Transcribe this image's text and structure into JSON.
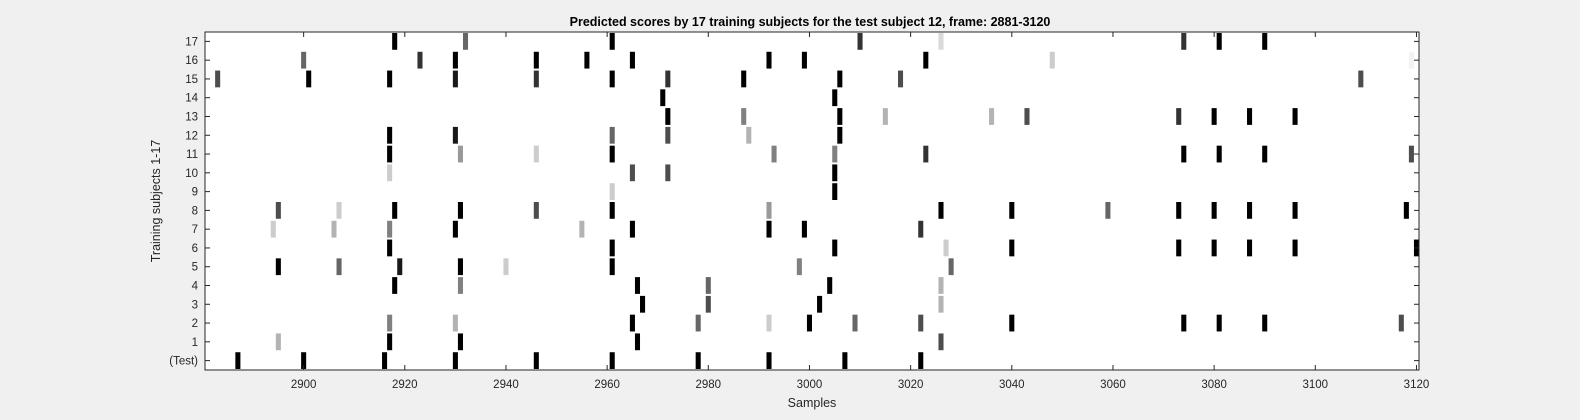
{
  "chart_data": {
    "type": "heatmap",
    "title": "Predicted scores by 17 training subjects for the test subject 12, frame: 2881-3120",
    "xlabel": "Samples",
    "ylabel": "Training subjects 1-17",
    "xlim": [
      2881,
      3120
    ],
    "x_ticks": [
      2900,
      2920,
      2940,
      2960,
      2980,
      3000,
      3020,
      3040,
      3060,
      3080,
      3100,
      3120
    ],
    "row_labels": [
      "(Test)",
      "1",
      "2",
      "3",
      "4",
      "5",
      "6",
      "7",
      "8",
      "9",
      "10",
      "11",
      "12",
      "13",
      "14",
      "15",
      "16",
      "17"
    ],
    "value_scale": "1 = black, 0 = white",
    "rows": [
      {
        "label": "(Test)",
        "cells": [
          [
            2887,
            1
          ],
          [
            2900,
            1
          ],
          [
            2916,
            1
          ],
          [
            2930,
            1
          ],
          [
            2946,
            1
          ],
          [
            2961,
            1
          ],
          [
            2978,
            1
          ],
          [
            2992,
            1
          ],
          [
            3007,
            1
          ],
          [
            3022,
            1
          ]
        ]
      },
      {
        "label": "1",
        "cells": [
          [
            2895,
            0.3
          ],
          [
            2917,
            1
          ],
          [
            2931,
            1
          ],
          [
            2966,
            1
          ],
          [
            3026,
            0.7
          ]
        ]
      },
      {
        "label": "2",
        "cells": [
          [
            2917,
            0.5
          ],
          [
            2930,
            0.3
          ],
          [
            2965,
            1
          ],
          [
            2978,
            0.6
          ],
          [
            2992,
            0.2
          ],
          [
            3000,
            1
          ],
          [
            3009,
            0.6
          ],
          [
            3022,
            0.7
          ],
          [
            3040,
            1
          ],
          [
            3074,
            1
          ],
          [
            3081,
            1
          ],
          [
            3090,
            1
          ],
          [
            3117,
            0.7
          ]
        ]
      },
      {
        "label": "3",
        "cells": [
          [
            2967,
            1
          ],
          [
            2980,
            0.7
          ],
          [
            3002,
            1
          ],
          [
            3026,
            0.3
          ]
        ]
      },
      {
        "label": "4",
        "cells": [
          [
            2918,
            1
          ],
          [
            2931,
            0.5
          ],
          [
            2966,
            1
          ],
          [
            2980,
            0.6
          ],
          [
            3004,
            1
          ],
          [
            3026,
            0.3
          ]
        ]
      },
      {
        "label": "5",
        "cells": [
          [
            2895,
            1
          ],
          [
            2907,
            0.6
          ],
          [
            2919,
            0.9
          ],
          [
            2931,
            1
          ],
          [
            2940,
            0.2
          ],
          [
            2961,
            1
          ],
          [
            2998,
            0.5
          ],
          [
            3028,
            0.6
          ]
        ]
      },
      {
        "label": "6",
        "cells": [
          [
            2917,
            1
          ],
          [
            2961,
            1
          ],
          [
            3005,
            1
          ],
          [
            3027,
            0.2
          ],
          [
            3040,
            1
          ],
          [
            3073,
            1
          ],
          [
            3080,
            1
          ],
          [
            3087,
            1
          ],
          [
            3096,
            1
          ],
          [
            3120,
            1
          ]
        ]
      },
      {
        "label": "7",
        "cells": [
          [
            2894,
            0.2
          ],
          [
            2906,
            0.3
          ],
          [
            2917,
            0.5
          ],
          [
            2930,
            1
          ],
          [
            2955,
            0.3
          ],
          [
            2965,
            1
          ],
          [
            2992,
            1
          ],
          [
            2999,
            1
          ],
          [
            3022,
            0.8
          ]
        ]
      },
      {
        "label": "8",
        "cells": [
          [
            2895,
            0.7
          ],
          [
            2907,
            0.2
          ],
          [
            2918,
            1
          ],
          [
            2931,
            1
          ],
          [
            2946,
            0.7
          ],
          [
            2961,
            1
          ],
          [
            2992,
            0.4
          ],
          [
            3026,
            1
          ],
          [
            3040,
            1
          ],
          [
            3059,
            0.6
          ],
          [
            3073,
            1
          ],
          [
            3080,
            1
          ],
          [
            3087,
            1
          ],
          [
            3096,
            1
          ],
          [
            3118,
            1
          ]
        ]
      },
      {
        "label": "9",
        "cells": [
          [
            2961,
            0.2
          ],
          [
            3005,
            1
          ]
        ]
      },
      {
        "label": "10",
        "cells": [
          [
            2917,
            0.2
          ],
          [
            2965,
            0.7
          ],
          [
            2972,
            0.7
          ],
          [
            3005,
            1
          ]
        ]
      },
      {
        "label": "11",
        "cells": [
          [
            2917,
            1
          ],
          [
            2931,
            0.4
          ],
          [
            2946,
            0.2
          ],
          [
            2961,
            1
          ],
          [
            2993,
            0.5
          ],
          [
            3005,
            0.5
          ],
          [
            3023,
            0.8
          ],
          [
            3074,
            1
          ],
          [
            3081,
            1
          ],
          [
            3090,
            1
          ],
          [
            3119,
            0.7
          ]
        ]
      },
      {
        "label": "12",
        "cells": [
          [
            2917,
            1
          ],
          [
            2930,
            0.9
          ],
          [
            2961,
            0.6
          ],
          [
            2972,
            0.7
          ],
          [
            2988,
            0.3
          ],
          [
            3006,
            1
          ]
        ]
      },
      {
        "label": "13",
        "cells": [
          [
            2972,
            1
          ],
          [
            2987,
            0.5
          ],
          [
            3006,
            1
          ],
          [
            3015,
            0.3
          ],
          [
            3036,
            0.3
          ],
          [
            3043,
            0.7
          ],
          [
            3073,
            0.8
          ],
          [
            3080,
            1
          ],
          [
            3087,
            1
          ],
          [
            3096,
            1
          ]
        ]
      },
      {
        "label": "14",
        "cells": [
          [
            2971,
            1
          ],
          [
            3005,
            1
          ]
        ]
      },
      {
        "label": "15",
        "cells": [
          [
            2883,
            0.7
          ],
          [
            2901,
            1
          ],
          [
            2917,
            1
          ],
          [
            2930,
            0.9
          ],
          [
            2946,
            0.8
          ],
          [
            2961,
            1
          ],
          [
            2972,
            0.8
          ],
          [
            2987,
            1
          ],
          [
            3006,
            1
          ],
          [
            3018,
            0.7
          ],
          [
            3109,
            0.7
          ]
        ]
      },
      {
        "label": "16",
        "cells": [
          [
            2900,
            0.6
          ],
          [
            2923,
            0.8
          ],
          [
            2930,
            1
          ],
          [
            2946,
            1
          ],
          [
            2956,
            1
          ],
          [
            2965,
            1
          ],
          [
            2992,
            1
          ],
          [
            2999,
            1
          ],
          [
            3023,
            1
          ],
          [
            3048,
            0.2
          ],
          [
            3119,
            0.05
          ]
        ]
      },
      {
        "label": "17",
        "cells": [
          [
            2918,
            1
          ],
          [
            2932,
            0.6
          ],
          [
            2961,
            1
          ],
          [
            3010,
            0.8
          ],
          [
            3026,
            0.15
          ],
          [
            3074,
            0.8
          ],
          [
            3081,
            1
          ],
          [
            3090,
            1
          ]
        ]
      }
    ]
  }
}
